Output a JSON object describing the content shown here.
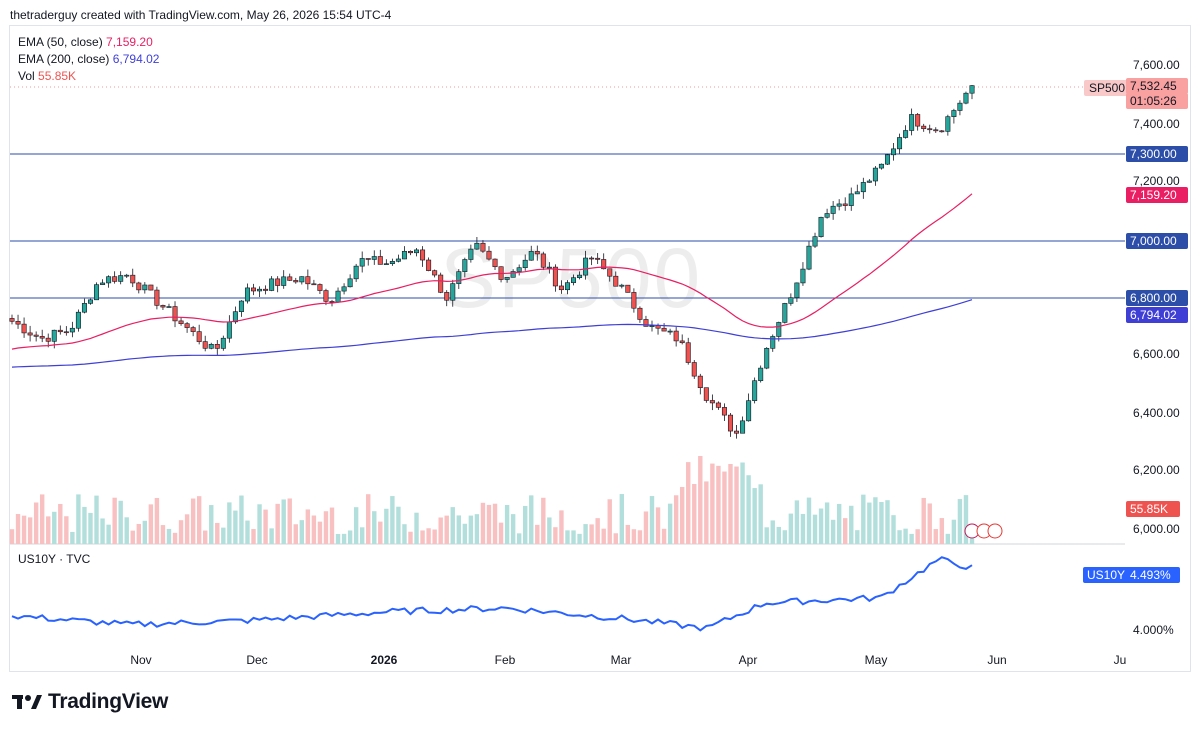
{
  "header": {
    "text": "thetraderguy created with TradingView.com, May 26, 2026 15:54 UTC-4"
  },
  "watermark": "SP500",
  "legend": [
    {
      "label": "EMA (50, close)",
      "value": "7,159.20",
      "color": "#e91e63"
    },
    {
      "label": "EMA (200, close)",
      "value": "6,794.02",
      "color": "#3f3fd6"
    },
    {
      "label": "Vol",
      "value": "55.85K",
      "color": "#ef5350"
    }
  ],
  "price_tags": {
    "symbol": "SP500",
    "last": "7,532.45",
    "countdown": "01:05:26",
    "level_7300": "7,300.00",
    "ema50": "7,159.20",
    "level_7000": "7,000.00",
    "level_6800": "6,800.00",
    "ema200": "6,794.02",
    "volume": "55.85K",
    "us10y_symbol": "US10Y",
    "us10y_value": "4.493%"
  },
  "y_axis": [
    "7,600.00",
    "7,400.00",
    "7,200.00",
    "6,600.00",
    "6,400.00",
    "6,200.00",
    "6,000.00"
  ],
  "lower_pane": {
    "title": "US10Y · TVC",
    "axis_label": "4.000%"
  },
  "x_axis": [
    "Nov",
    "Dec",
    "2026",
    "Feb",
    "Mar",
    "Apr",
    "May",
    "Jun",
    "Ju"
  ],
  "footer": {
    "brand": "TradingView"
  },
  "colors": {
    "up": "#26a69a",
    "down": "#ef5350",
    "ema50": "#e91e63",
    "ema200": "#3f3fd6",
    "levels": "#2c4ea8",
    "yield": "#2962ff"
  },
  "chart_data": {
    "type": "line",
    "symbol": "SP500",
    "anchors": [
      {
        "date": "2025-10-06",
        "close": 6720
      },
      {
        "date": "2025-10-13",
        "close": 6660
      },
      {
        "date": "2025-10-20",
        "close": 6690
      },
      {
        "date": "2025-10-27",
        "close": 6860
      },
      {
        "date": "2025-11-03",
        "close": 6880
      },
      {
        "date": "2025-11-10",
        "close": 6790
      },
      {
        "date": "2025-11-17",
        "close": 6700
      },
      {
        "date": "2025-11-24",
        "close": 6610
      },
      {
        "date": "2025-12-01",
        "close": 6820
      },
      {
        "date": "2025-12-08",
        "close": 6850
      },
      {
        "date": "2025-12-15",
        "close": 6870
      },
      {
        "date": "2025-12-22",
        "close": 6790
      },
      {
        "date": "2025-12-29",
        "close": 6930
      },
      {
        "date": "2026-01-05",
        "close": 6920
      },
      {
        "date": "2026-01-12",
        "close": 6970
      },
      {
        "date": "2026-01-19",
        "close": 6800
      },
      {
        "date": "2026-01-26",
        "close": 6980
      },
      {
        "date": "2026-02-02",
        "close": 6870
      },
      {
        "date": "2026-02-09",
        "close": 6960
      },
      {
        "date": "2026-02-16",
        "close": 6830
      },
      {
        "date": "2026-02-23",
        "close": 6940
      },
      {
        "date": "2026-03-02",
        "close": 6840
      },
      {
        "date": "2026-03-09",
        "close": 6700
      },
      {
        "date": "2026-03-16",
        "close": 6660
      },
      {
        "date": "2026-03-23",
        "close": 6460
      },
      {
        "date": "2026-03-30",
        "close": 6330
      },
      {
        "date": "2026-04-06",
        "close": 6620
      },
      {
        "date": "2026-04-13",
        "close": 6840
      },
      {
        "date": "2026-04-20",
        "close": 7100
      },
      {
        "date": "2026-04-27",
        "close": 7150
      },
      {
        "date": "2026-05-04",
        "close": 7250
      },
      {
        "date": "2026-05-11",
        "close": 7420
      },
      {
        "date": "2026-05-18",
        "close": 7380
      },
      {
        "date": "2026-05-26",
        "close": 7532.45
      }
    ],
    "ema50_end": 7159.2,
    "ema200_end": 6794.02,
    "horizontal_levels": [
      7300,
      7000,
      6800
    ],
    "us10y": [
      {
        "date": "2025-10-06",
        "value": 4.12
      },
      {
        "date": "2025-11-03",
        "value": 4.05
      },
      {
        "date": "2025-12-01",
        "value": 4.08
      },
      {
        "date": "2026-01-05",
        "value": 4.15
      },
      {
        "date": "2026-02-02",
        "value": 4.18
      },
      {
        "date": "2026-03-02",
        "value": 4.1
      },
      {
        "date": "2026-03-23",
        "value": 4.02
      },
      {
        "date": "2026-04-06",
        "value": 4.22
      },
      {
        "date": "2026-05-04",
        "value": 4.26
      },
      {
        "date": "2026-05-18",
        "value": 4.56
      },
      {
        "date": "2026-05-26",
        "value": 4.493
      }
    ],
    "ylabel": "",
    "xlabel": ""
  }
}
